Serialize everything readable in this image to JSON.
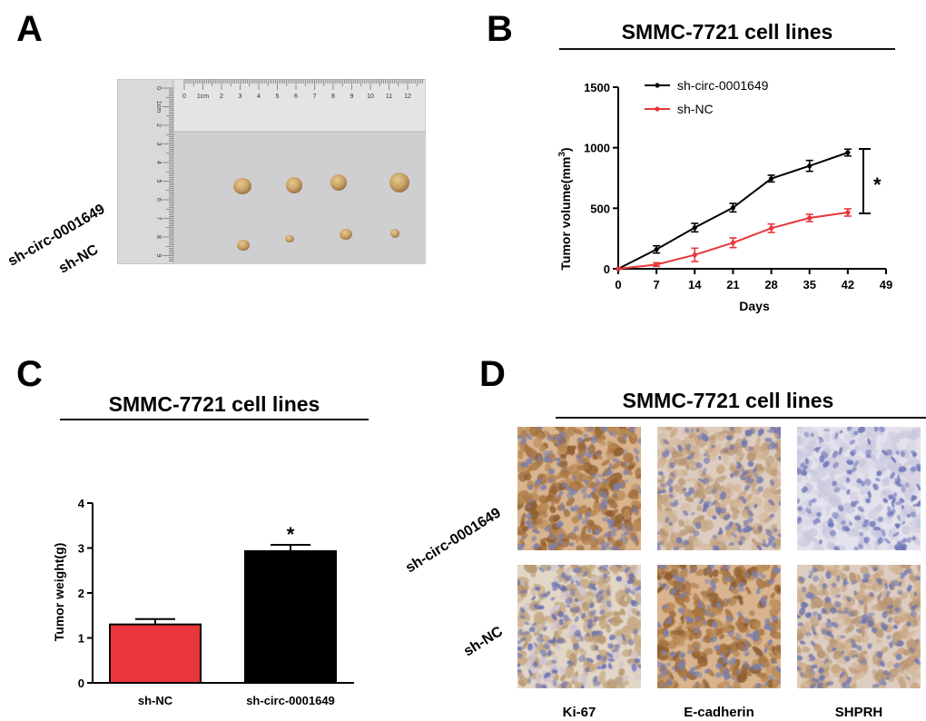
{
  "panel_a": {
    "letter": "A",
    "row_labels": [
      "sh-circ-0001649",
      "sh-NC"
    ],
    "ruler_top_labels": [
      "0",
      "1cm",
      "2",
      "3",
      "4",
      "5",
      "6",
      "7",
      "8",
      "9",
      "10",
      "11",
      "12"
    ],
    "ruler_left_labels": [
      "0",
      "1cm",
      "2",
      "3",
      "4",
      "5",
      "6",
      "7",
      "8",
      "9"
    ]
  },
  "panel_b": {
    "letter": "B",
    "title": "SMMC-7721 cell lines",
    "significance": "*"
  },
  "panel_c": {
    "letter": "C",
    "title": "SMMC-7721 cell lines",
    "significance": "*"
  },
  "panel_d": {
    "letter": "D",
    "title": "SMMC-7721 cell lines",
    "row_labels": [
      "sh-circ-0001649",
      "sh-NC"
    ],
    "column_labels": [
      "Ki-67",
      "E-cadherin",
      "SHPRH"
    ]
  },
  "chart_data": [
    {
      "type": "line",
      "title": "SMMC-7721 cell lines",
      "xlabel": "Days",
      "ylabel": "Tumor volume(mm³)",
      "ylabel_main": "Tumor volume(mm",
      "ylabel_sup": "3",
      "ylabel_end": ")",
      "x": [
        0,
        7,
        14,
        21,
        28,
        35,
        42
      ],
      "xticks": [
        "0",
        "7",
        "14",
        "21",
        "28",
        "35",
        "42",
        "49"
      ],
      "xlim": [
        0,
        49
      ],
      "ylim": [
        0,
        1500
      ],
      "yticks": [
        "0",
        "500",
        "1000",
        "1500"
      ],
      "legend_position": "top-left",
      "series": [
        {
          "name": "sh-circ-0001649",
          "color": "#000000",
          "values": [
            0,
            160,
            340,
            505,
            745,
            850,
            960
          ],
          "errors": [
            0,
            30,
            35,
            35,
            28,
            45,
            28
          ]
        },
        {
          "name": "sh-NC",
          "color": "#e8363a",
          "values": [
            0,
            35,
            115,
            215,
            335,
            420,
            465
          ],
          "errors": [
            0,
            15,
            55,
            40,
            35,
            30,
            30
          ]
        }
      ]
    },
    {
      "type": "bar",
      "title": "SMMC-7721 cell lines",
      "ylabel": "Tumor weight(g)",
      "categories": [
        "sh-NC",
        "sh-circ-0001649"
      ],
      "values": [
        1.3,
        2.93
      ],
      "errors": [
        0.12,
        0.14
      ],
      "colors": [
        "#e8363a",
        "#000000"
      ],
      "ylim": [
        0,
        4
      ],
      "yticks": [
        "0",
        "1",
        "2",
        "3",
        "4"
      ]
    }
  ]
}
